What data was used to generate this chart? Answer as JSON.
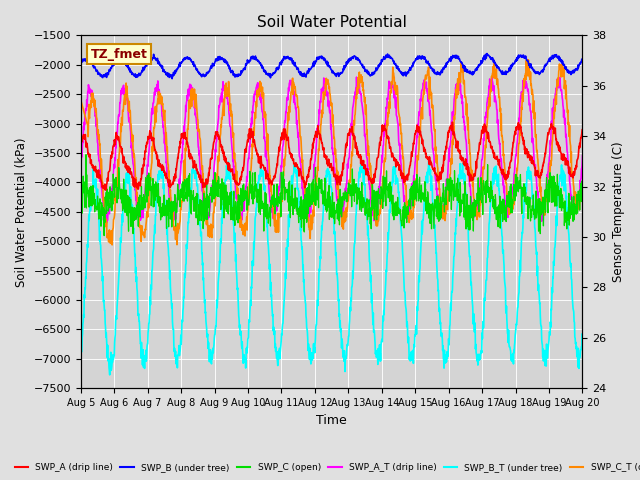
{
  "title": "Soil Water Potential",
  "xlabel": "Time",
  "ylabel_left": "Soil Water Potential (kPa)",
  "ylabel_right": "Sensor Temperature (C)",
  "ylim_left": [
    -7500,
    -1500
  ],
  "ylim_right": [
    24,
    38
  ],
  "yticks_left": [
    -7500,
    -7000,
    -6500,
    -6000,
    -5500,
    -5000,
    -4500,
    -4000,
    -3500,
    -3000,
    -2500,
    -2000,
    -1500
  ],
  "yticks_right": [
    24,
    26,
    28,
    30,
    32,
    34,
    36,
    38
  ],
  "xtick_labels": [
    "Aug 5",
    "Aug 6",
    "Aug 7",
    "Aug 8",
    "Aug 9",
    "Aug 10",
    "Aug 11",
    "Aug 12",
    "Aug 13",
    "Aug 14",
    "Aug 15",
    "Aug 16",
    "Aug 17",
    "Aug 18",
    "Aug 19",
    "Aug 20"
  ],
  "bg_color": "#e0e0e0",
  "plot_bg_color": "#d4d4d4",
  "legend_box_color": "#ffffcc",
  "legend_box_edge": "#cc8800",
  "legend_text_color": "#8b0000",
  "series": {
    "SWP_B": {
      "color": "#0000ff",
      "label": "SWP_B (under tree)"
    },
    "SWP_C": {
      "color": "#00dd00",
      "label": "SWP_C (open)"
    },
    "SWP_A": {
      "color": "#ff0000",
      "label": "SWP_A (drip line)"
    },
    "SWP_A_T": {
      "color": "#ff00ff",
      "label": "SWP_A_T (drip line)"
    },
    "SWP_B_T": {
      "color": "#00ffff",
      "label": "SWP_B_T (under tree)"
    },
    "SWP_C_T": {
      "color": "#ff8800",
      "label": "SWP_C_T (open)"
    }
  }
}
